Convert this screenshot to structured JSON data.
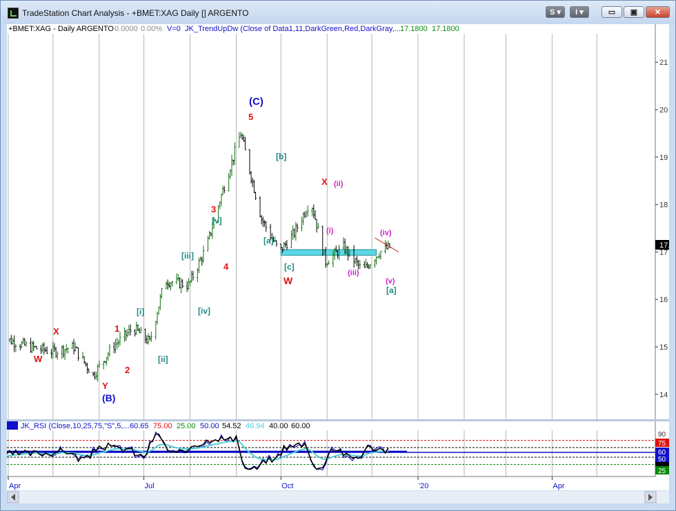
{
  "window": {
    "title": "TradeStation Chart Analysis - +BMET:XAG Daily [] ARGENTO",
    "buttons": [
      "S",
      "I"
    ],
    "controls": {
      "minimize": "▭",
      "restore": "▣",
      "close": "✕"
    }
  },
  "header": {
    "symbol": "+BMET:XAG - Daily  ARGENTO",
    "change": "0.0000",
    "pct": "0.00%",
    "volume": "V=0",
    "indicator": "JK_TrendUpDw (Close of Data1,11,DarkGreen,Red,DarkGray,...",
    "v1": "17.1800",
    "v2": "17.1800"
  },
  "price_axis": {
    "ticks": [
      "21",
      "20",
      "19",
      "18",
      "17",
      "16",
      "15",
      "14"
    ],
    "last_label": "17."
  },
  "rsi_panel": {
    "label": "JK_RSI (Close,10,25,75,\"S\",5,...",
    "values": [
      "60.65",
      "75.00",
      "25.00",
      "50.00",
      "54.52",
      "46.94",
      "40.00",
      "60.00"
    ],
    "ticks": [
      "90",
      "75",
      "60",
      "50",
      "25"
    ]
  },
  "time_axis": {
    "labels": [
      "Apr",
      "Jul",
      "Oct",
      "'20",
      "Apr"
    ]
  },
  "wave_labels": [
    {
      "text": "W",
      "color": "#e01010"
    },
    {
      "text": "X",
      "color": "#e01010"
    },
    {
      "text": "Y",
      "color": "#e01010"
    },
    {
      "text": "(B)",
      "color": "#1010c8"
    },
    {
      "text": "1",
      "color": "#e01010"
    },
    {
      "text": "2",
      "color": "#e01010"
    },
    {
      "text": "[i]",
      "color": "#1f8a80"
    },
    {
      "text": "[ii]",
      "color": "#1f8a80"
    },
    {
      "text": "[iii]",
      "color": "#1f8a80"
    },
    {
      "text": "[iv]",
      "color": "#1f8a80"
    },
    {
      "text": "[v]",
      "color": "#1f8a80"
    },
    {
      "text": "3",
      "color": "#e01010"
    },
    {
      "text": "4",
      "color": "#e01010"
    },
    {
      "text": "(C)",
      "color": "#1010c8"
    },
    {
      "text": "5",
      "color": "#e01010"
    },
    {
      "text": "[b]",
      "color": "#1f8a80"
    },
    {
      "text": "[a]",
      "color": "#1f8a80"
    },
    {
      "text": "[c]",
      "color": "#1f8a80"
    },
    {
      "text": "W",
      "color": "#e01010"
    },
    {
      "text": "X",
      "color": "#e01010"
    },
    {
      "text": "(ii)",
      "color": "#d020c8"
    },
    {
      "text": "(i)",
      "color": "#d020c8"
    },
    {
      "text": "(iii)",
      "color": "#d020c8"
    },
    {
      "text": "(iv)",
      "color": "#d020c8"
    },
    {
      "text": "(v)",
      "color": "#d020c8"
    },
    {
      "text": "[a]",
      "color": "#1f8a80"
    }
  ],
  "chart_data": {
    "type": "line",
    "series": [
      {
        "x": [
          "Mar 27",
          "Apr 15",
          "May 1",
          "May 15",
          "May 28",
          "Jun 10",
          "Jun 24",
          "Jul 5",
          "Jul 15",
          "Jul 31",
          "Aug 12",
          "Aug 23",
          "Sep 4",
          "Sep 18",
          "Sep 30",
          "Oct 10",
          "Oct 21",
          "Oct 31",
          "Nov 12",
          "Nov 25",
          "Dec 6",
          "Dec 13"
        ],
        "values": [
          15.2,
          15.0,
          14.9,
          15.0,
          14.4,
          15.0,
          15.4,
          15.1,
          16.4,
          16.3,
          17.1,
          18.3,
          19.5,
          17.7,
          17.0,
          17.4,
          18.1,
          16.8,
          17.1,
          16.6,
          17.0,
          17.1
        ]
      }
    ],
    "zone": {
      "from": "Oct 1",
      "to": "Dec 4",
      "low": 16.93,
      "high": 17.05
    },
    "trendline": {
      "from": [
        "Dec 3",
        17.3
      ],
      "to": [
        "Dec 19",
        17.0
      ]
    },
    "rsi_levels": [
      75,
      60,
      50,
      40,
      25
    ],
    "ylim": [
      13.45,
      21.5
    ]
  },
  "colors": {
    "bars": "#000000",
    "zone": "#5ad8e6",
    "rsi_main": "#000000",
    "rsi_signal": "#4fd0d8",
    "rsi_blue": "#0000c8",
    "level_75": "#e01010",
    "level_60": "#1010c8",
    "level_25": "#0a8a0a"
  }
}
